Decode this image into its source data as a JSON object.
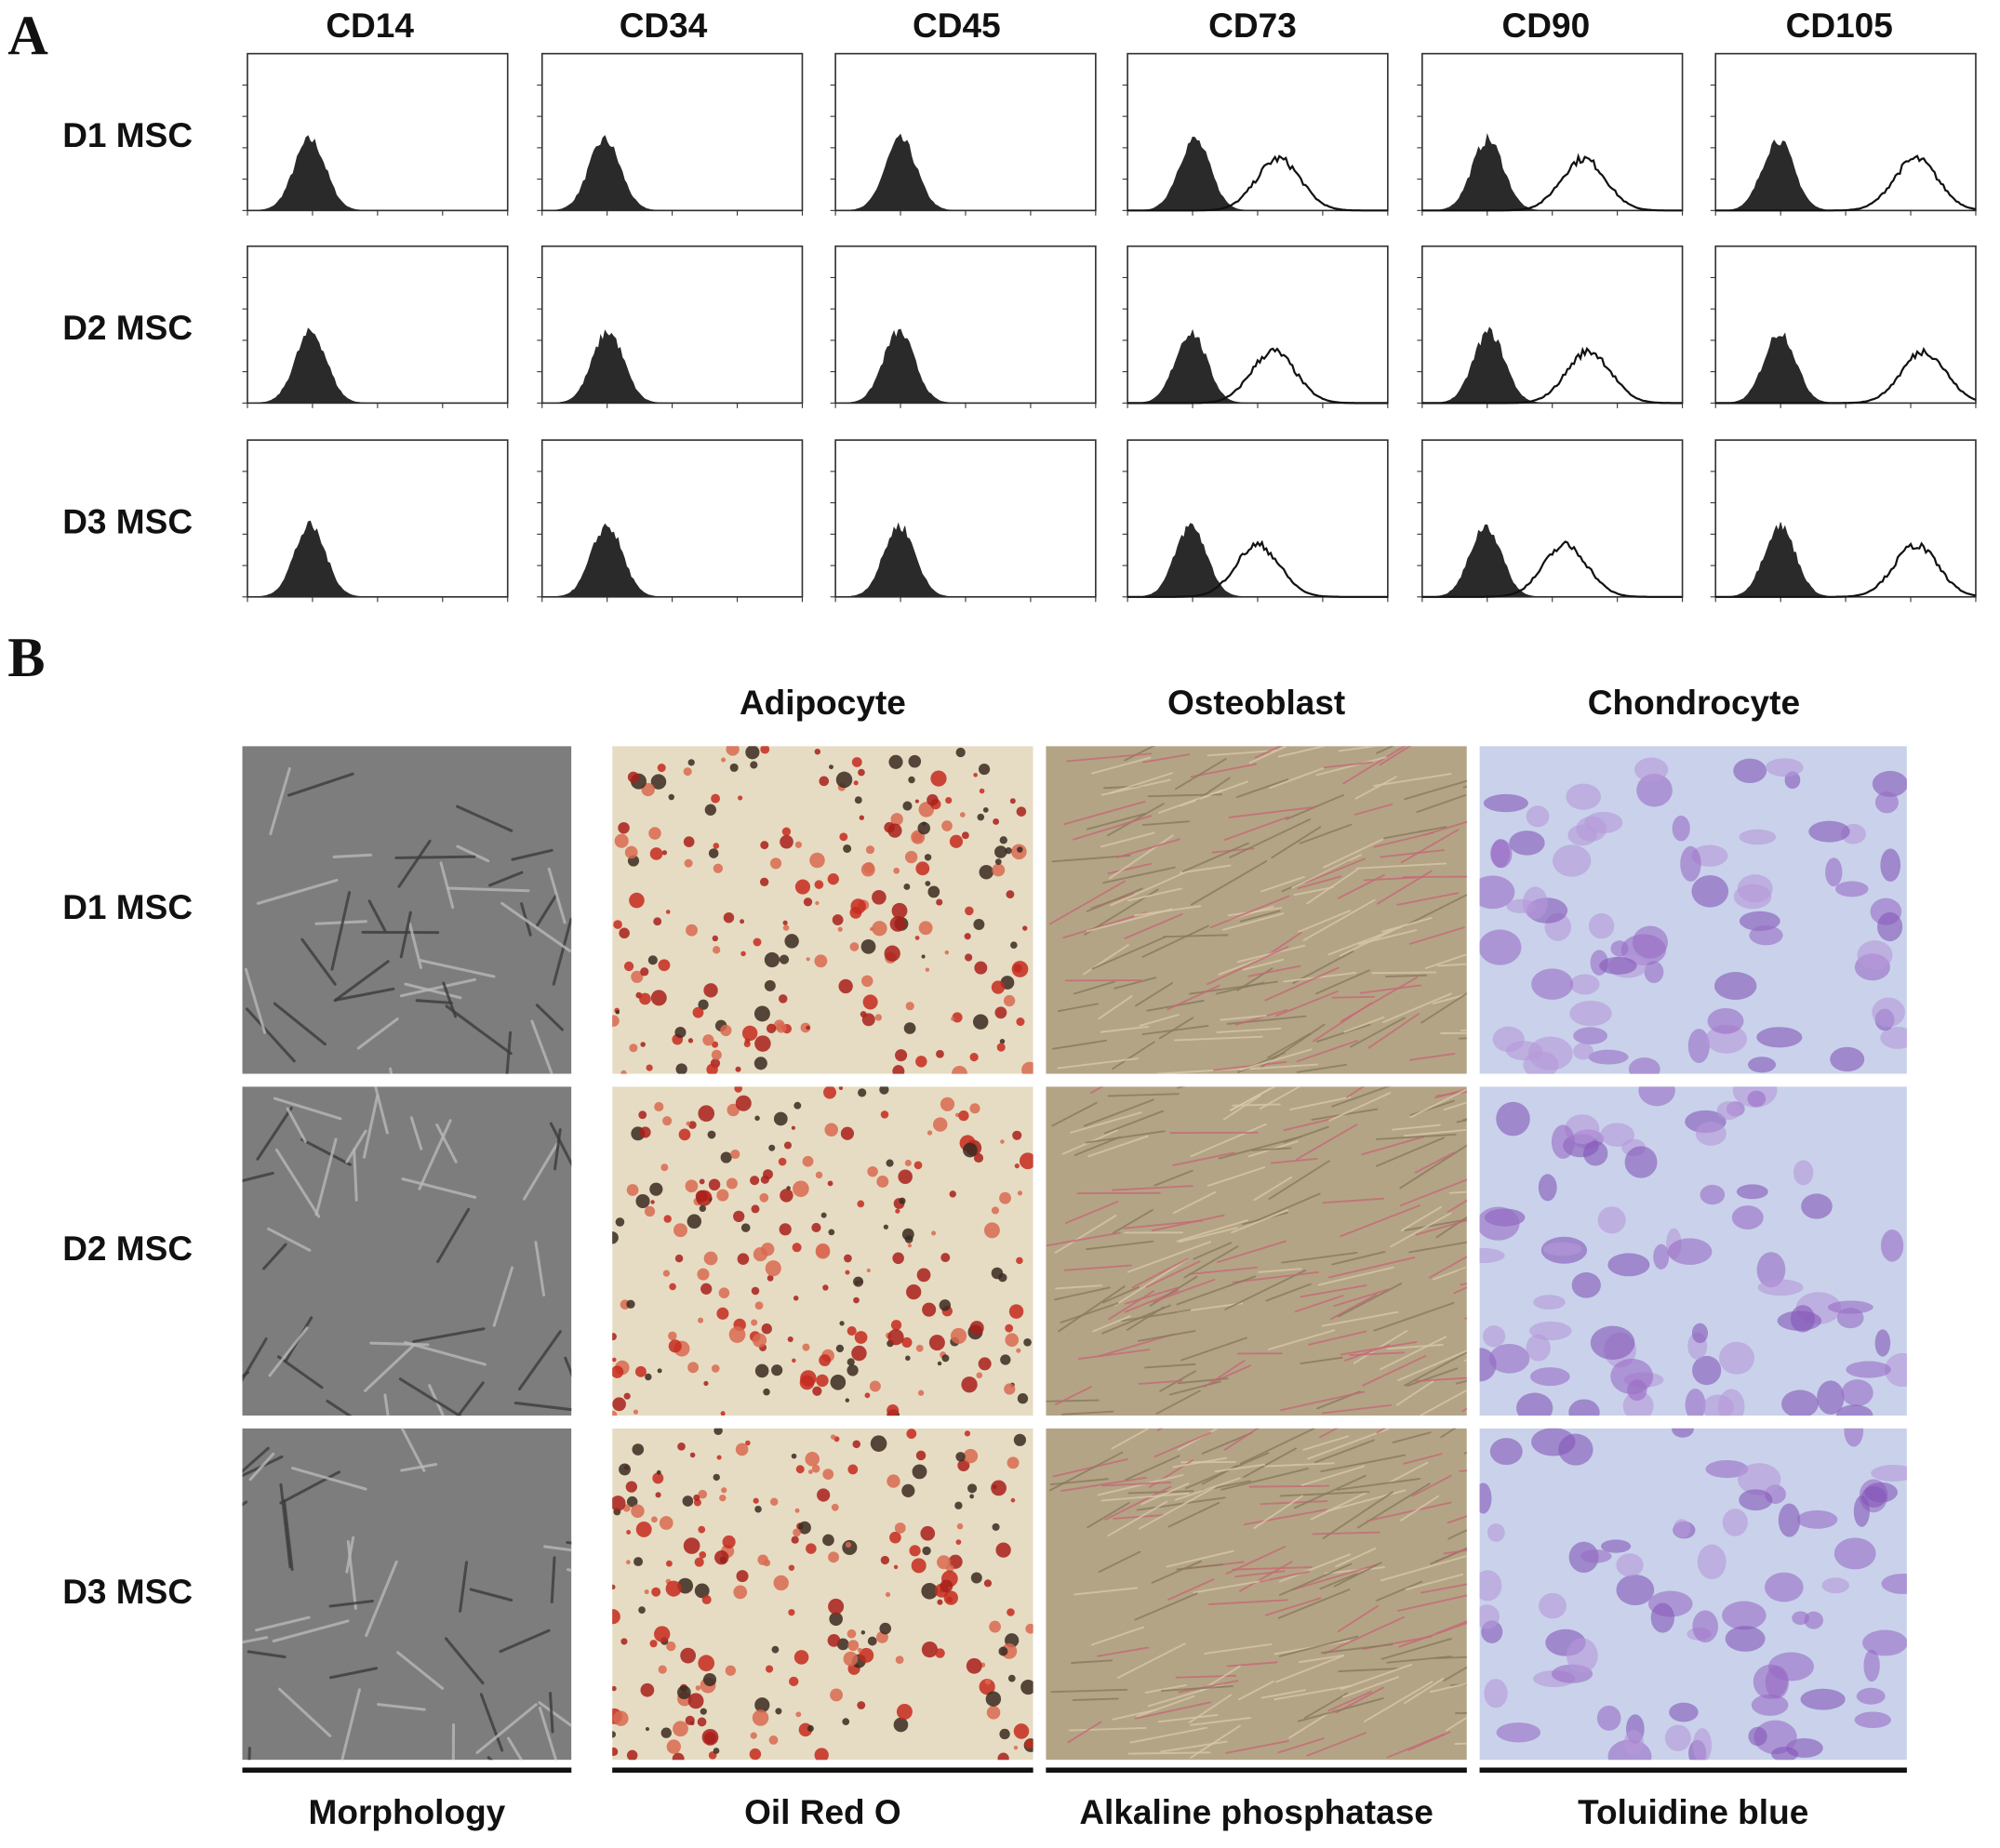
{
  "panel_a": {
    "label": "A",
    "columns": [
      "CD14",
      "CD34",
      "CD45",
      "CD73",
      "CD90",
      "CD105"
    ],
    "rows": [
      "D1 MSC",
      "D2 MSC",
      "D3 MSC"
    ]
  },
  "panel_b": {
    "label": "B",
    "columns": [
      "Adipocyte",
      "Osteoblast",
      "Chondrocyte"
    ],
    "rows": [
      "D1 MSC",
      "D2 MSC",
      "D3 MSC"
    ],
    "stains": [
      "Morphology",
      "Oil Red O",
      "Alkaline phosphatase",
      "Toluidine blue"
    ]
  }
}
